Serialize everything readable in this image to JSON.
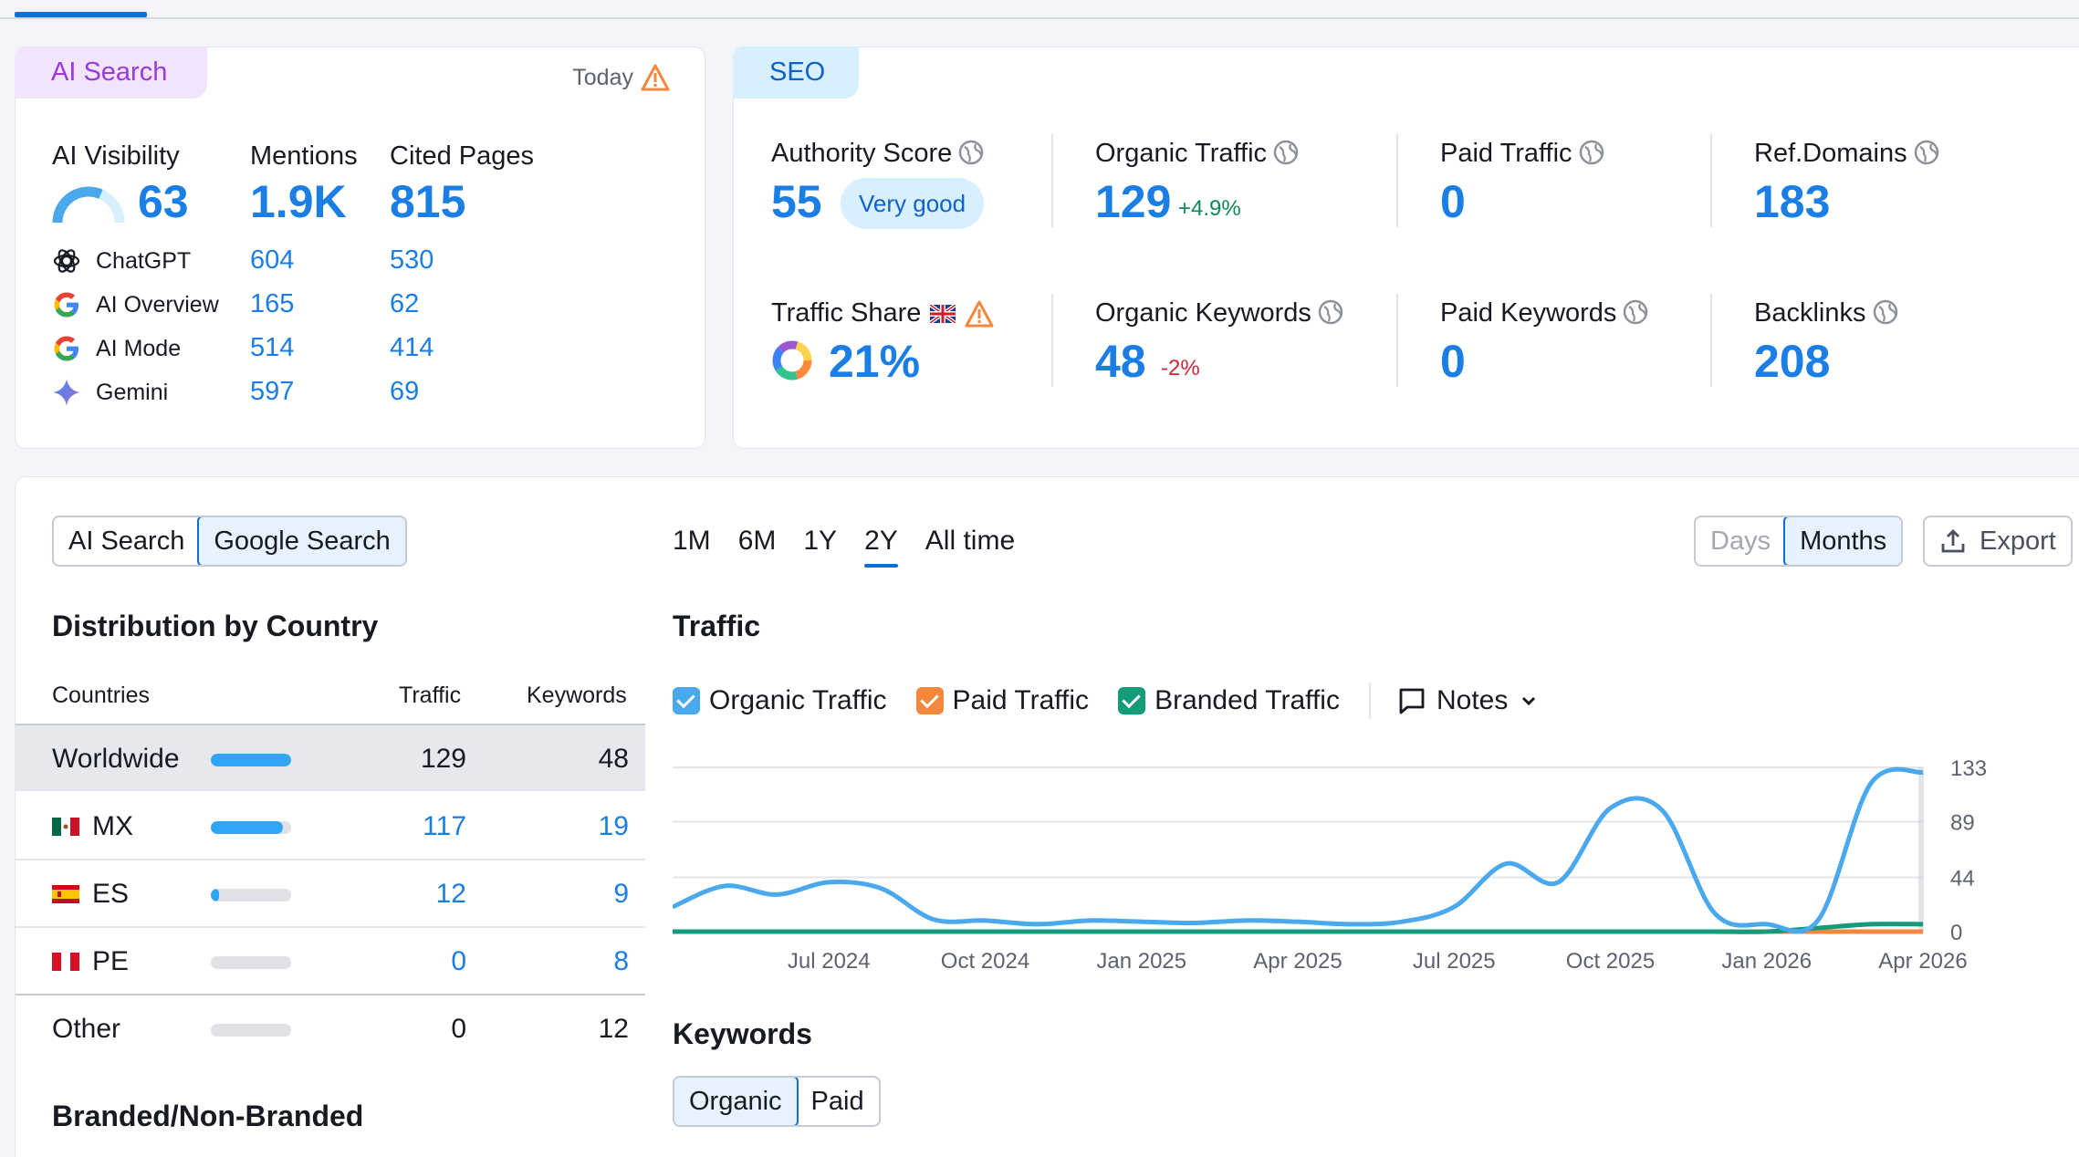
{
  "ai_card": {
    "tag": "AI Search",
    "today": "Today",
    "headers": {
      "visibility": "AI Visibility",
      "mentions": "Mentions",
      "cited": "Cited Pages"
    },
    "visibility_value": "63",
    "visibility_gauge": 0.63,
    "mentions_value": "1.9K",
    "cited_value": "815",
    "rows": [
      {
        "name": "ChatGPT",
        "icon": "chatgpt-icon",
        "mentions": "604",
        "cited": "530"
      },
      {
        "name": "AI Overview",
        "icon": "google-icon",
        "mentions": "165",
        "cited": "62"
      },
      {
        "name": "AI Mode",
        "icon": "google-icon",
        "mentions": "514",
        "cited": "414"
      },
      {
        "name": "Gemini",
        "icon": "gemini-icon",
        "mentions": "597",
        "cited": "69"
      }
    ]
  },
  "seo_card": {
    "tag": "SEO",
    "authority": {
      "label": "Authority Score",
      "value": "55",
      "badge": "Very good"
    },
    "organic_traffic": {
      "label": "Organic Traffic",
      "value": "129",
      "change": "+4.9%"
    },
    "paid_traffic": {
      "label": "Paid Traffic",
      "value": "0"
    },
    "ref_domains": {
      "label": "Ref.Domains",
      "value": "183"
    },
    "traffic_share": {
      "label": "Traffic Share",
      "value": "21%"
    },
    "organic_keywords": {
      "label": "Organic Keywords",
      "value": "48",
      "change": "-2%"
    },
    "paid_keywords": {
      "label": "Paid Keywords",
      "value": "0"
    },
    "backlinks": {
      "label": "Backlinks",
      "value": "208"
    }
  },
  "main": {
    "search_toggle": [
      "AI Search",
      "Google Search"
    ],
    "periods": [
      "1M",
      "6M",
      "1Y",
      "2Y",
      "All time"
    ],
    "granularity": [
      "Days",
      "Months"
    ],
    "export": "Export",
    "distribution_title": "Distribution by Country",
    "table_headers": {
      "countries": "Countries",
      "traffic": "Traffic",
      "keywords": "Keywords"
    },
    "countries": [
      {
        "name": "Worldwide",
        "traffic": "129",
        "keywords": "48",
        "share": 1.0
      },
      {
        "name": "MX",
        "traffic": "117",
        "keywords": "19",
        "share": 0.9
      },
      {
        "name": "ES",
        "traffic": "12",
        "keywords": "9",
        "share": 0.1
      },
      {
        "name": "PE",
        "traffic": "0",
        "keywords": "8",
        "share": 0.0
      },
      {
        "name": "Other",
        "traffic": "0",
        "keywords": "12",
        "share": 0.0
      }
    ],
    "branded_title": "Branded/Non-Branded",
    "traffic_title": "Traffic",
    "legend": [
      "Organic Traffic",
      "Paid Traffic",
      "Branded Traffic"
    ],
    "notes": "Notes",
    "keywords_title": "Keywords",
    "keywords_toggle": [
      "Organic",
      "Paid"
    ],
    "colors": {
      "organic": "#4aa8ec",
      "paid": "#f3883d",
      "branded": "#139b7a"
    }
  },
  "chart_data": {
    "type": "line",
    "x": [
      "2024-04",
      "2024-05",
      "2024-06",
      "2024-07",
      "2024-08",
      "2024-09",
      "2024-10",
      "2024-11",
      "2024-12",
      "2025-01",
      "2025-02",
      "2025-03",
      "2025-04",
      "2025-05",
      "2025-06",
      "2025-07",
      "2025-08",
      "2025-09",
      "2025-10",
      "2025-11",
      "2025-12",
      "2026-01",
      "2026-02",
      "2026-03",
      "2026-04"
    ],
    "x_tick_labels": [
      "Jul 2024",
      "Oct 2024",
      "Jan 2025",
      "Apr 2025",
      "Jul 2025",
      "Oct 2025",
      "Jan 2026",
      "Apr 2026"
    ],
    "y_ticks": [
      0,
      44,
      89,
      133
    ],
    "ylim": [
      0,
      133
    ],
    "series": [
      {
        "name": "Organic Traffic",
        "values": [
          20,
          37,
          30,
          40,
          35,
          10,
          9,
          6,
          9,
          8,
          7,
          9,
          8,
          6,
          8,
          20,
          55,
          40,
          100,
          98,
          15,
          6,
          10,
          120,
          129
        ]
      },
      {
        "name": "Paid Traffic",
        "values": [
          0,
          0,
          0,
          0,
          0,
          0,
          0,
          0,
          0,
          0,
          0,
          0,
          0,
          0,
          0,
          0,
          0,
          0,
          0,
          0,
          0,
          0,
          0,
          0,
          0
        ]
      },
      {
        "name": "Branded Traffic",
        "values": [
          0,
          0,
          0,
          0,
          0,
          0,
          0,
          0,
          0,
          0,
          0,
          0,
          0,
          0,
          0,
          0,
          0,
          0,
          0,
          0,
          0,
          0,
          3,
          6,
          6
        ]
      }
    ]
  }
}
